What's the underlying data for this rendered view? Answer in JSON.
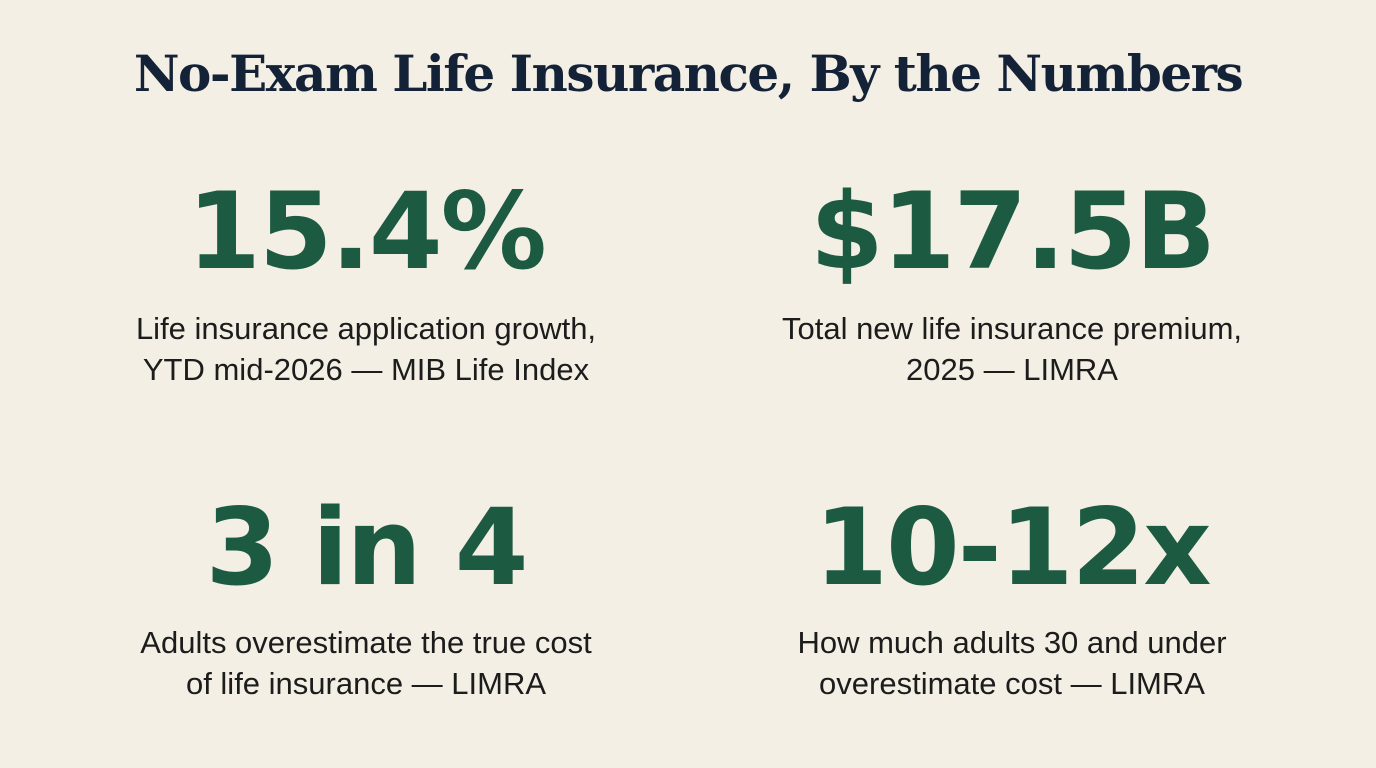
{
  "title": "No-Exam Life Insurance, By the Numbers",
  "stats": [
    {
      "value": "15.4%",
      "caption_line1": "Life insurance application growth,",
      "caption_line2": "YTD mid-2026 — MIB Life Index"
    },
    {
      "value": "$17.5B",
      "caption_line1": "Total new life insurance premium,",
      "caption_line2": "2025 — LIMRA"
    },
    {
      "value": "3 in 4",
      "caption_line1": "Adults overestimate the true cost",
      "caption_line2": "of life insurance — LIMRA"
    },
    {
      "value": "10-12x",
      "caption_line1": "How much adults 30 and under",
      "caption_line2": "overestimate cost — LIMRA"
    }
  ],
  "colors": {
    "background": "#f4efe4",
    "title": "#142238",
    "stat_value": "#1d5a42",
    "caption": "#1c1c1c"
  }
}
